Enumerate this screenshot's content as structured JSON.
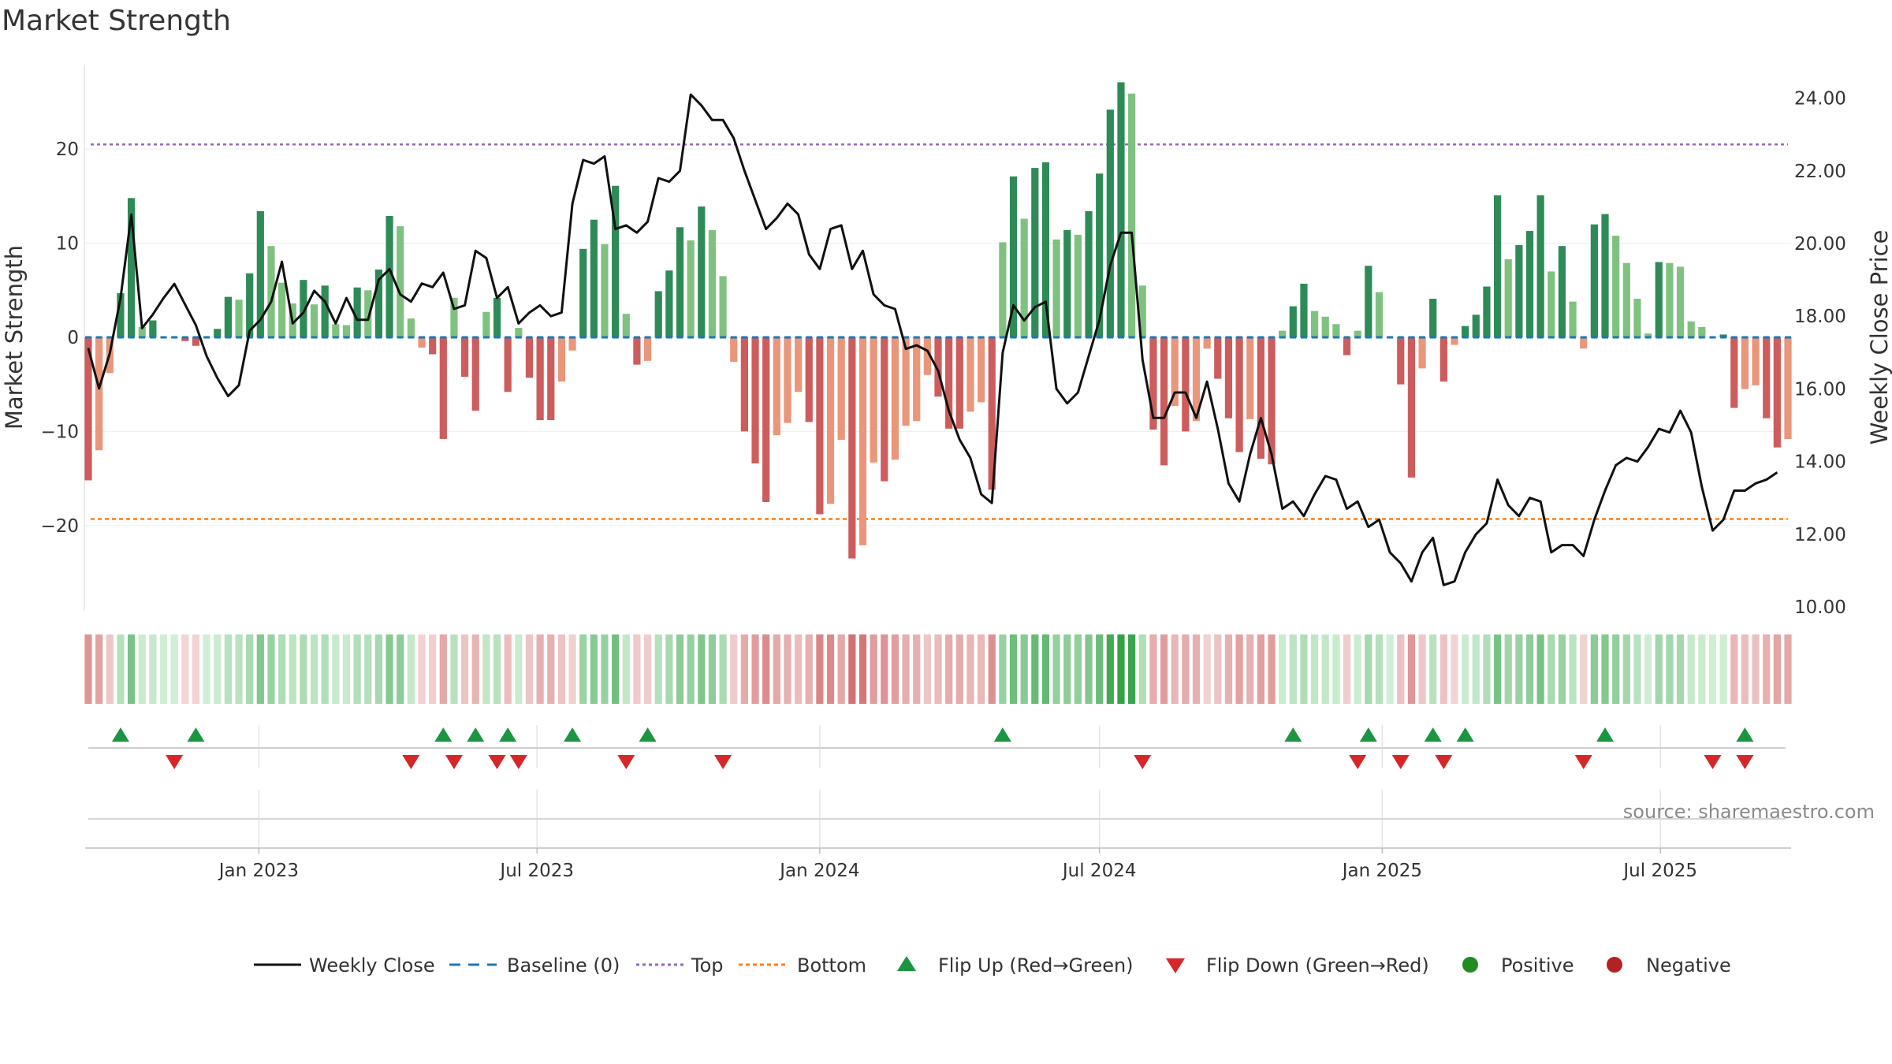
{
  "chart_data": {
    "type": "bar",
    "title": "Market Strength",
    "ylabel_left": "Market Strength",
    "ylabel_right": "Weekly Close Price",
    "left_axis": {
      "ylim": [
        -29.5,
        29
      ],
      "ticks": [
        -20,
        -10,
        0,
        10,
        20
      ],
      "tick_labels": [
        "−20",
        "−10",
        "0",
        "10",
        "20"
      ]
    },
    "right_axis": {
      "ylim": [
        10,
        25
      ],
      "ticks": [
        10,
        12,
        14,
        16,
        18,
        20,
        22,
        24
      ],
      "tick_labels": [
        "10.00",
        "12.00",
        "14.00",
        "16.00",
        "18.00",
        "20.00",
        "22.00",
        "24.00"
      ]
    },
    "x_axis": {
      "start": "2022-09-12",
      "week_step_days": 7,
      "tick_dates": [
        "2023-01-01",
        "2023-07-01",
        "2024-01-01",
        "2024-07-01",
        "2025-01-01",
        "2025-07-01"
      ],
      "tick_labels": [
        "Jan 2023",
        "Jul 2023",
        "Jan 2024",
        "Jul 2024",
        "Jan 2025",
        "Jul 2025"
      ]
    },
    "reference_lines": {
      "top": 20.5,
      "bottom": -19.3,
      "baseline": 0
    },
    "strength": [
      -15.2,
      -12,
      -3.8,
      4.7,
      14.8,
      1.1,
      1.8,
      0,
      0,
      -0.4,
      -0.9,
      0,
      0.9,
      4.3,
      4,
      6.8,
      13.4,
      9.7,
      5.8,
      3.6,
      6.1,
      3.5,
      5.5,
      1.4,
      1.3,
      5.3,
      5,
      7.2,
      12.9,
      11.8,
      2,
      -1.1,
      -1.8,
      -10.8,
      4.2,
      -4.2,
      -7.8,
      2.7,
      4.2,
      -5.8,
      1,
      -4.3,
      -8.8,
      -8.8,
      -4.7,
      -1.4,
      9.4,
      12.5,
      9.9,
      16.1,
      2.5,
      -2.9,
      -2.5,
      4.9,
      7.1,
      11.7,
      10.3,
      13.9,
      11.4,
      6.5,
      -2.6,
      -10,
      -13.4,
      -17.5,
      -10.4,
      -9.1,
      -5.8,
      -9,
      -18.8,
      -17.7,
      -10.9,
      -23.5,
      -22.1,
      -13.3,
      -15.3,
      -13,
      -9.4,
      -8.9,
      -4,
      -6.3,
      -9.7,
      -9.7,
      -7.9,
      -6.9,
      -16.2,
      10.1,
      17.1,
      12.6,
      18,
      18.6,
      10.4,
      11.4,
      10.9,
      13.4,
      17.4,
      24.2,
      27.1,
      25.9,
      5.5,
      -9.8,
      -13.6,
      -7.3,
      -10,
      -8.9,
      -1.2,
      -4.4,
      -8.6,
      -12.2,
      -8.7,
      -12.9,
      -13.5,
      0.7,
      3.3,
      5.7,
      2.8,
      2.2,
      1.4,
      -1.9,
      0.7,
      7.6,
      4.8,
      0,
      -5,
      -14.9,
      -3.3,
      4.1,
      -4.7,
      -0.8,
      1.2,
      2.4,
      5.4,
      15.1,
      8.3,
      9.8,
      11.3,
      15.1,
      7,
      9.7,
      3.8,
      -1.2,
      12,
      13.1,
      10.8,
      7.9,
      4.1,
      0.4,
      8,
      7.9,
      7.5,
      1.7,
      1.1,
      0,
      0.3,
      -7.5,
      -5.5,
      -5.1,
      -8.6,
      -11.7,
      -10.8
    ],
    "weekly_close": [
      17.12,
      16.01,
      16.98,
      18.5,
      20.8,
      17.67,
      18.05,
      18.5,
      18.89,
      18.32,
      17.75,
      16.9,
      16.3,
      15.8,
      16.1,
      17.6,
      17.9,
      18.4,
      19.5,
      17.8,
      18.1,
      18.7,
      18.4,
      17.8,
      18.5,
      17.9,
      17.9,
      19.0,
      19.3,
      18.6,
      18.4,
      18.9,
      18.8,
      19.2,
      18.2,
      18.3,
      19.8,
      19.6,
      18.5,
      18.8,
      17.8,
      18.1,
      18.3,
      18.0,
      18.1,
      21.1,
      22.3,
      22.2,
      22.4,
      20.4,
      20.5,
      20.3,
      20.6,
      21.8,
      21.7,
      22.0,
      24.1,
      23.8,
      23.4,
      23.4,
      22.9,
      22.0,
      21.2,
      20.4,
      20.7,
      21.1,
      20.8,
      19.7,
      19.3,
      20.4,
      20.5,
      19.3,
      19.8,
      18.6,
      18.3,
      18.2,
      17.1,
      17.2,
      17.05,
      16.5,
      15.4,
      14.6,
      14.1,
      13.1,
      12.86,
      17.0,
      18.3,
      17.88,
      18.25,
      18.4,
      16.0,
      15.6,
      15.9,
      16.9,
      17.9,
      19.4,
      20.3,
      20.3,
      16.8,
      15.2,
      15.2,
      15.9,
      15.9,
      15.2,
      16.2,
      14.9,
      13.4,
      12.9,
      14.2,
      15.2,
      14.2,
      12.7,
      12.9,
      12.5,
      13.1,
      13.6,
      13.5,
      12.7,
      12.9,
      12.2,
      12.4,
      11.5,
      11.2,
      10.7,
      11.5,
      11.9,
      10.6,
      10.7,
      11.5,
      12.0,
      12.3,
      13.5,
      12.8,
      12.5,
      13.0,
      12.9,
      11.5,
      11.7,
      11.7,
      11.4,
      12.4,
      13.2,
      13.9,
      14.1,
      14.0,
      14.4,
      14.9,
      14.8,
      15.4,
      14.8,
      13.3,
      12.1,
      12.4,
      13.2,
      13.2,
      13.4,
      13.5,
      13.7
    ],
    "flip_up_weeks": [
      3,
      10,
      33,
      36,
      39,
      45,
      52,
      85,
      112,
      119,
      125,
      128,
      141,
      154
    ],
    "flip_down_weeks": [
      8,
      30,
      34,
      38,
      40,
      50,
      59,
      98,
      118,
      122,
      126,
      139,
      151,
      154
    ],
    "legend": [
      "Weekly Close",
      "Baseline (0)",
      "Top",
      "Bottom",
      "Flip Up (Red→Green)",
      "Flip Down (Green→Red)",
      "Positive",
      "Negative"
    ],
    "source": "source: sharemaestro.com",
    "colors": {
      "pos_dark": "#2e8b57",
      "pos_light": "#7fc27f",
      "neg_dark": "#cd5c5c",
      "neg_light": "#e9967a",
      "line": "#111111",
      "baseline": "#1f77b4",
      "top": "#9467bd",
      "bottom": "#ff7f0e",
      "flip_up": "#1a9641",
      "flip_down": "#d62728",
      "positive": "#228b22",
      "negative": "#b22222"
    }
  }
}
